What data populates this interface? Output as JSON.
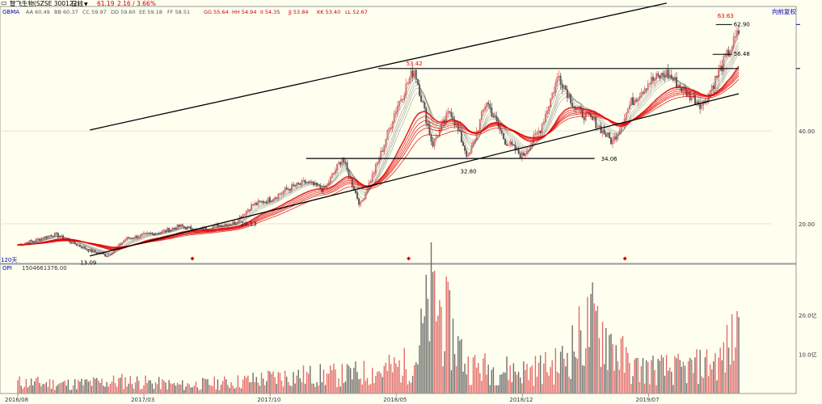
{
  "header": {
    "menu_icon": "menu-icon",
    "title": "智飞生物(SZSE 300122)",
    "period": "日线",
    "period_caret": "▼",
    "price": "61.19",
    "change": "2.16 / 3.66%",
    "fuquan": "向前复权"
  },
  "indicator_row": {
    "name": "GBMA",
    "items": [
      {
        "label": "AA 60.49",
        "color": "#555555"
      },
      {
        "label": "BB 60.37",
        "color": "#555555"
      },
      {
        "label": "CC 59.97",
        "color": "#555555"
      },
      {
        "label": "DD 59.60",
        "color": "#555555"
      },
      {
        "label": "EE 59.18",
        "color": "#555555"
      },
      {
        "label": "FF 58.51",
        "color": "#555555"
      },
      {
        "label": "GG 55.64",
        "color": "#cc0000"
      },
      {
        "label": "HH 54.94",
        "color": "#cc0000"
      },
      {
        "label": "II 54.35",
        "color": "#cc0000"
      },
      {
        "label": "JJ 53.84",
        "color": "#cc0000"
      },
      {
        "label": "KK 53.40",
        "color": "#cc0000"
      },
      {
        "label": "LL 52.67",
        "color": "#cc0000"
      }
    ]
  },
  "volume_header": {
    "name": "OPI",
    "value": "1504661376.00"
  },
  "misc": {
    "cycle_label": "120天"
  },
  "colors": {
    "background": "#fffff0",
    "up": "#e05a5a",
    "down": "#555555",
    "ma_red": "#e00000",
    "trendline": "#000000",
    "accent_blue": "#0000aa",
    "marker": "#dd0000"
  },
  "chart_data": [
    {
      "type": "line",
      "series_kind": "candlestick price with guppy moving average ribbon",
      "x": [
        "2016/08",
        "2017/03",
        "2017/10",
        "2018/05",
        "2018/12",
        "2019/07"
      ],
      "ylim": [
        13,
        66
      ],
      "yticks": [
        20.0,
        40.0
      ],
      "annotations": [
        {
          "label": "63.63",
          "x": "2019/11",
          "y": 63.63,
          "color": "#e00000"
        },
        {
          "label": "62.90",
          "x": "2019/11",
          "y": 62.9,
          "color": "#000000"
        },
        {
          "label": "56.48",
          "x": "2019/11",
          "y": 56.48,
          "color": "#000000"
        },
        {
          "label": "53.42",
          "x": "2018/06",
          "y": 53.42,
          "color": "#e00000"
        },
        {
          "label": "34.06",
          "x": "2019/04",
          "y": 34.06,
          "color": "#000000"
        },
        {
          "label": "32.80",
          "x": "2018/09",
          "y": 32.8,
          "color": "#000000"
        },
        {
          "label": "20.13",
          "x": "2017/08",
          "y": 20.13,
          "color": "#000000"
        },
        {
          "label": "13.09",
          "x": "2016/12",
          "y": 13.09,
          "color": "#000000"
        }
      ],
      "horizontal_lines": [
        {
          "name": "resistance",
          "y": 53.42,
          "from": "2018/04",
          "to": "2019/12"
        },
        {
          "name": "support",
          "y": 34.06,
          "from": "2017/12",
          "to": "2019/04"
        }
      ],
      "trend_lines": [
        {
          "name": "upper-channel",
          "from": {
            "x": "2016/12",
            "y": 40.2
          },
          "to": {
            "x": "2019/08",
            "y": 67.5
          }
        },
        {
          "name": "lower-channel",
          "from": {
            "x": "2016/12",
            "y": 13.09
          },
          "to": {
            "x": "2019/12",
            "y": 48.0
          }
        }
      ],
      "path": [
        [
          "2016/08",
          15.5
        ],
        [
          "2016/09",
          16.5
        ],
        [
          "2016/10",
          17.8
        ],
        [
          "2016/11",
          16.0
        ],
        [
          "2016/12",
          14.2
        ],
        [
          "2017/01",
          13.1
        ],
        [
          "2017/02",
          16.8
        ],
        [
          "2017/03",
          17.6
        ],
        [
          "2017/04",
          18.3
        ],
        [
          "2017/05",
          19.5
        ],
        [
          "2017/06",
          18.6
        ],
        [
          "2017/07",
          19.6
        ],
        [
          "2017/08",
          20.2
        ],
        [
          "2017/09",
          24.0
        ],
        [
          "2017/10",
          25.3
        ],
        [
          "2017/11",
          27.6
        ],
        [
          "2017/12",
          29.0
        ],
        [
          "2018/01",
          27.3
        ],
        [
          "2018/02",
          34.2
        ],
        [
          "2018/03",
          24.0
        ],
        [
          "2018/04",
          33.5
        ],
        [
          "2018/05",
          45.0
        ],
        [
          "2018/06",
          53.4
        ],
        [
          "2018/07",
          37.0
        ],
        [
          "2018/08",
          44.5
        ],
        [
          "2018/09",
          34.0
        ],
        [
          "2018/10",
          46.5
        ],
        [
          "2018/11",
          38.0
        ],
        [
          "2018/12",
          34.5
        ],
        [
          "2019/01",
          40.5
        ],
        [
          "2019/02",
          52.0
        ],
        [
          "2019/03",
          44.5
        ],
        [
          "2019/04",
          42.0
        ],
        [
          "2019/05",
          37.5
        ],
        [
          "2019/06",
          46.0
        ],
        [
          "2019/07",
          50.5
        ],
        [
          "2019/08",
          52.4
        ],
        [
          "2019/09",
          48.5
        ],
        [
          "2019/10",
          45.5
        ],
        [
          "2019/11",
          53.5
        ],
        [
          "2019/12",
          61.2
        ]
      ]
    },
    {
      "type": "bar",
      "series_kind": "volume (OPI)",
      "categories": [
        "2016/08",
        "2017/03",
        "2017/10",
        "2018/05",
        "2018/12",
        "2019/07"
      ],
      "yticks": [
        "10.0亿",
        "20.0亿"
      ],
      "ylim_unit": "亿",
      "profile": [
        [
          "2016/08",
          3.5
        ],
        [
          "2016/11",
          3.0
        ],
        [
          "2017/02",
          4.0
        ],
        [
          "2017/05",
          2.6
        ],
        [
          "2017/08",
          3.6
        ],
        [
          "2017/11",
          5.5
        ],
        [
          "2018/02",
          5.8
        ],
        [
          "2018/04",
          7.0
        ],
        [
          "2018/06",
          9.5
        ],
        [
          "2018/07",
          31.0
        ],
        [
          "2018/09",
          8.5
        ],
        [
          "2018/12",
          7.0
        ],
        [
          "2019/02",
          9.0
        ],
        [
          "2019/04",
          23.0
        ],
        [
          "2019/06",
          8.0
        ],
        [
          "2019/09",
          7.5
        ],
        [
          "2019/11",
          10.5
        ],
        [
          "2019/12",
          19.5
        ]
      ]
    }
  ]
}
